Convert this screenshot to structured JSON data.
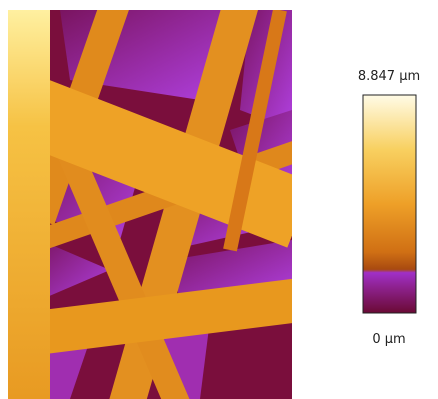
{
  "colorbar": {
    "max_label": "8.847 µm",
    "min_label": "0 µm"
  }
}
